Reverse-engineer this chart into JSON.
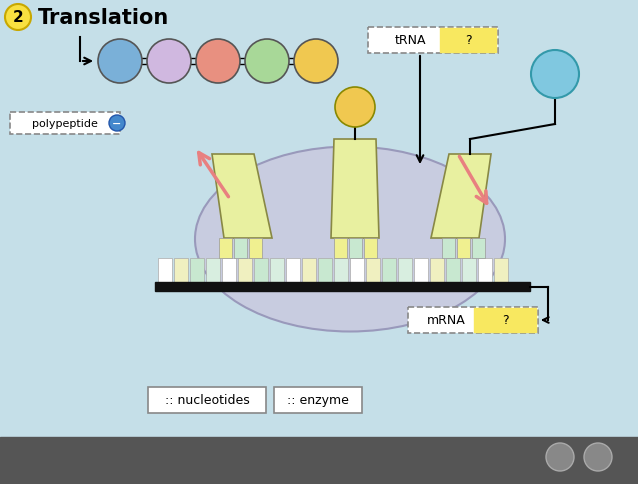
{
  "title": "Translation",
  "title_number": "2",
  "bg_color": "#c5dfe8",
  "bg_color2": "#ddeef5",
  "ribosome_color": "#c8cce0",
  "ribosome_ec": "#9999bb",
  "trna_body_color": "#e8f0a0",
  "trna_body_ec": "#888844",
  "mrna_bar_color": "#111111",
  "label_trna": "tRNA",
  "label_mrna": "mRNA  ?",
  "label_polypeptide": "polypeptide",
  "label_nucleotides": ":: nucleotides",
  "label_enzyme": ":: enzyme",
  "circle_colors": [
    "#7ab0d8",
    "#d0b8e0",
    "#e89080",
    "#a8d898",
    "#f0c850"
  ],
  "extra_circle_color": "#80c8e0",
  "nucleotide_colors": [
    "#ffffff",
    "#f0f0c0",
    "#c8e8d0",
    "#d8eee0"
  ],
  "codon_colors_left": [
    "#f0f090",
    "#c8e8d0",
    "#f0f090"
  ],
  "codon_colors_mid": [
    "#f0f090",
    "#c8e8d0",
    "#f0f090"
  ],
  "codon_colors_right": [
    "#c8e8d0",
    "#f0f090",
    "#c8e8d0"
  ],
  "pink_arrow_color": "#e88080",
  "yellow_q_color": "#f8e860",
  "yellow_q_ec": "#c8b030"
}
